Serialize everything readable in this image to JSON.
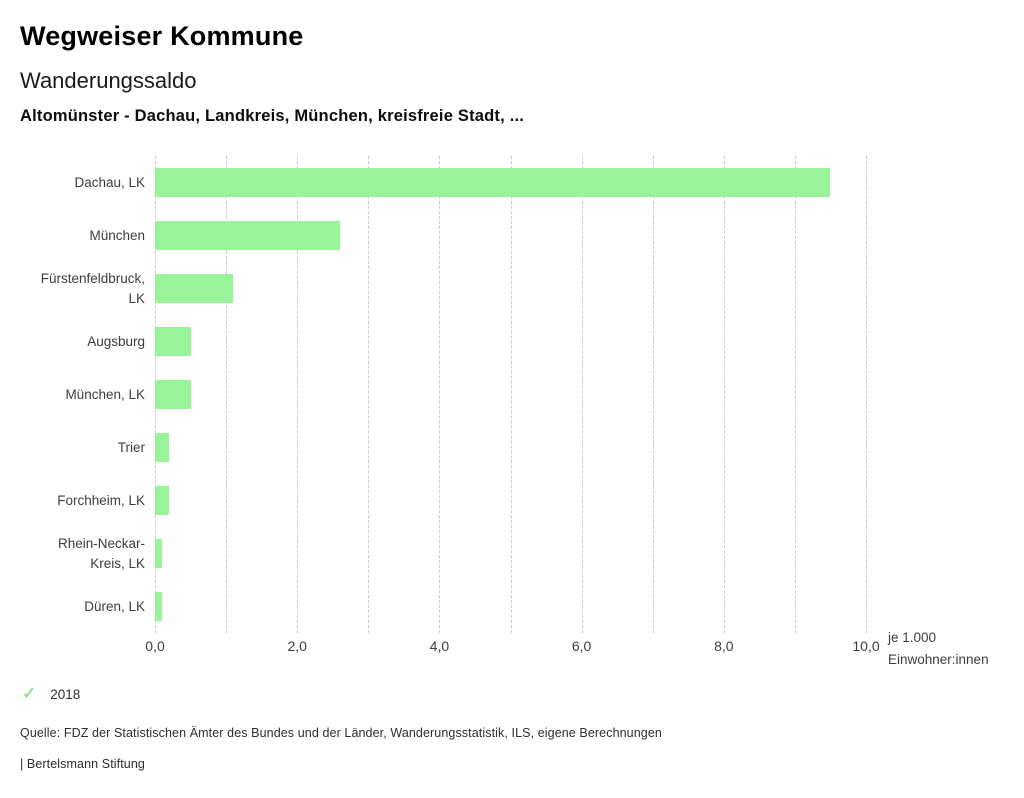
{
  "header": {
    "brand": "Wegweiser Kommune",
    "title": "Wanderungssaldo",
    "subtitle": "Altomünster - Dachau, Landkreis, München, kreisfreie Stadt, ..."
  },
  "chart_data": {
    "type": "bar",
    "orientation": "horizontal",
    "title": "Wanderungssaldo",
    "categories": [
      "Dachau, LK",
      "München",
      "Fürstenfeldbruck, LK",
      "Augsburg",
      "München, LK",
      "Trier",
      "Forchheim, LK",
      "Rhein-Neckar-Kreis, LK",
      "Düren, LK"
    ],
    "label_lines": [
      [
        "Dachau, LK"
      ],
      [
        "München"
      ],
      [
        "Fürstenfeldbruck,",
        "LK"
      ],
      [
        "Augsburg"
      ],
      [
        "München, LK"
      ],
      [
        "Trier"
      ],
      [
        "Forchheim, LK"
      ],
      [
        "Rhein-Neckar-",
        "Kreis, LK"
      ],
      [
        "Düren, LK"
      ]
    ],
    "series": [
      {
        "name": "2018",
        "values": [
          9.5,
          2.6,
          1.1,
          0.5,
          0.5,
          0.2,
          0.2,
          0.1,
          0.1
        ]
      }
    ],
    "xlim": [
      0,
      10
    ],
    "minor_grid_step": 1,
    "x_ticks": [
      {
        "value": 0,
        "label": "0,0"
      },
      {
        "value": 2,
        "label": "2,0"
      },
      {
        "value": 4,
        "label": "4,0"
      },
      {
        "value": 6,
        "label": "6,0"
      },
      {
        "value": 8,
        "label": "8,0"
      },
      {
        "value": 10,
        "label": "10,0"
      }
    ],
    "grid": "vertical-dashed",
    "legend_position": "bottom-left",
    "bar_color": "#99f399",
    "unit_label": [
      "je 1.000",
      "Einwohner:innen"
    ]
  },
  "legend": {
    "year": "2018",
    "check_glyph": "✓",
    "check_color": "#8fe88f"
  },
  "footer": {
    "source": "Quelle: FDZ der Statistischen Ämter des Bundes und der Länder, Wanderungsstatistik, ILS, eigene Berechnungen",
    "attribution": "| Bertelsmann Stiftung"
  }
}
